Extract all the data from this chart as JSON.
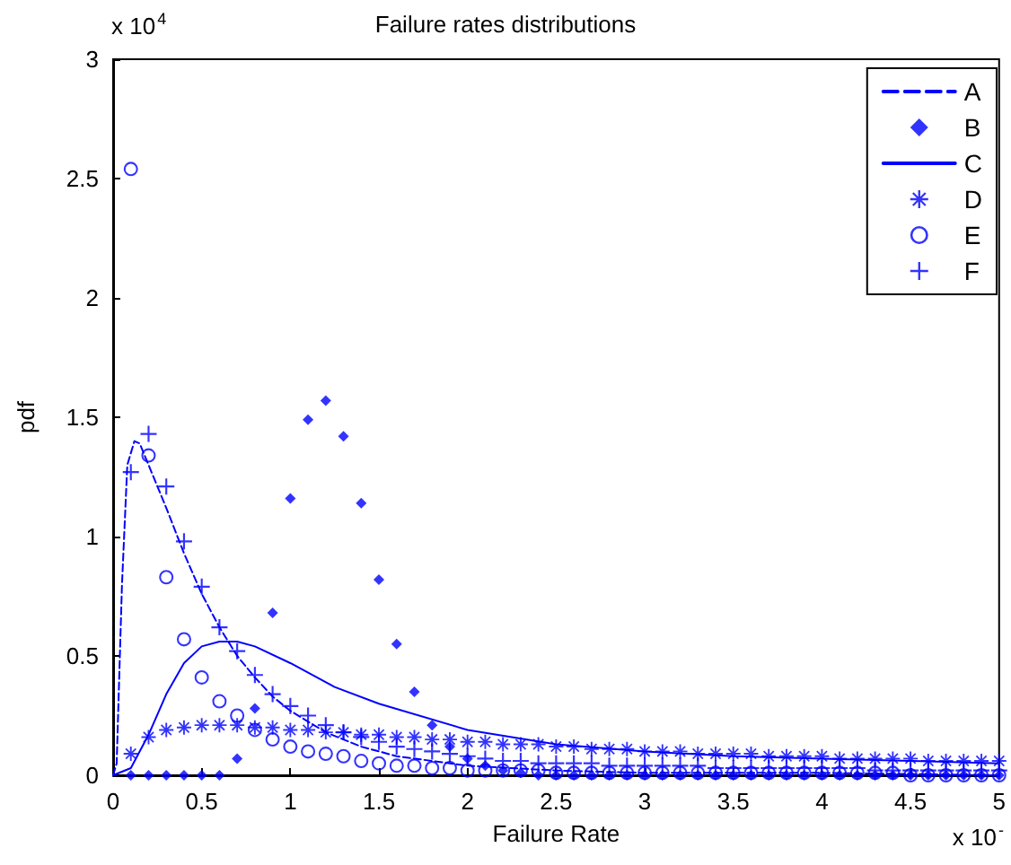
{
  "chart_data": {
    "type": "line",
    "title": "Failure rates distributions",
    "xlabel": "Failure Rate",
    "ylabel": "pdf",
    "annotations": [
      "x 10$^{4}$",
      "x 10$^{-}$"
    ],
    "x": [
      0.1,
      0.2,
      0.3,
      0.4,
      0.5,
      0.6,
      0.7,
      0.8,
      0.9,
      1.0,
      1.1,
      1.2,
      1.3,
      1.4,
      1.5,
      1.6,
      1.7,
      1.8,
      1.9,
      2.0,
      2.1,
      2.2,
      2.3,
      2.4,
      2.5,
      2.6,
      2.7,
      2.8,
      2.9,
      3.0,
      3.1,
      3.2,
      3.3,
      3.4,
      3.5,
      3.6,
      3.7,
      3.8,
      3.9,
      4.0,
      4.1,
      4.2,
      4.3,
      4.4,
      4.5,
      4.6,
      4.7,
      4.8,
      4.9,
      5.0
    ],
    "series": [
      {
        "name": "A",
        "type": "line",
        "line_style": "dashed",
        "marker": "none",
        "color": "#0000ff",
        "x": [
          0,
          0.02,
          0.05,
          0.08,
          0.12,
          0.15,
          0.2,
          0.3,
          0.4,
          0.5,
          0.6,
          0.7,
          0.8,
          0.9,
          1.0,
          1.2,
          1.4,
          1.6,
          1.8,
          2.0,
          2.5,
          3.0,
          4.0,
          5.0
        ],
        "values": [
          0,
          0.05,
          0.8,
          1.3,
          1.4,
          1.39,
          1.3,
          1.12,
          0.93,
          0.76,
          0.62,
          0.5,
          0.41,
          0.33,
          0.27,
          0.18,
          0.12,
          0.08,
          0.06,
          0.04,
          0.02,
          0.01,
          0.01,
          0
        ]
      },
      {
        "name": "B",
        "type": "scatter",
        "marker": "diamond",
        "color": "#0000ff",
        "values": [
          0,
          0,
          0,
          0,
          0,
          0,
          0.07,
          0.28,
          0.68,
          1.16,
          1.49,
          1.57,
          1.42,
          1.14,
          0.82,
          0.55,
          0.35,
          0.21,
          0.12,
          0.07,
          0.04,
          0.02,
          0.01,
          0,
          0,
          0,
          0,
          0,
          0,
          0,
          0,
          0,
          0,
          0,
          0,
          0,
          0,
          0,
          0,
          0,
          0,
          0,
          0,
          0,
          0,
          0,
          0,
          0,
          0,
          0
        ]
      },
      {
        "name": "C",
        "type": "line",
        "line_style": "solid",
        "marker": "none",
        "color": "#0000ff",
        "x": [
          0,
          0.1,
          0.2,
          0.3,
          0.4,
          0.5,
          0.6,
          0.7,
          0.8,
          1.0,
          1.25,
          1.5,
          2.0,
          2.5,
          3.0,
          3.5,
          4.0,
          4.5,
          5.0
        ],
        "values": [
          0,
          0.03,
          0.17,
          0.34,
          0.47,
          0.54,
          0.56,
          0.56,
          0.54,
          0.47,
          0.37,
          0.3,
          0.19,
          0.13,
          0.1,
          0.08,
          0.07,
          0.06,
          0.05
        ]
      },
      {
        "name": "D",
        "type": "scatter",
        "marker": "star",
        "color": "#0000ff",
        "values": [
          0.09,
          0.16,
          0.19,
          0.2,
          0.21,
          0.21,
          0.21,
          0.2,
          0.2,
          0.19,
          0.19,
          0.18,
          0.18,
          0.17,
          0.17,
          0.16,
          0.16,
          0.15,
          0.15,
          0.14,
          0.14,
          0.13,
          0.13,
          0.13,
          0.12,
          0.12,
          0.11,
          0.11,
          0.11,
          0.1,
          0.1,
          0.1,
          0.09,
          0.09,
          0.09,
          0.09,
          0.08,
          0.08,
          0.08,
          0.08,
          0.07,
          0.07,
          0.07,
          0.07,
          0.07,
          0.06,
          0.06,
          0.06,
          0.06,
          0.06
        ]
      },
      {
        "name": "E",
        "type": "scatter",
        "marker": "circle",
        "color": "#0000ff",
        "values": [
          2.54,
          1.34,
          0.83,
          0.57,
          0.41,
          0.31,
          0.25,
          0.19,
          0.15,
          0.12,
          0.1,
          0.09,
          0.08,
          0.06,
          0.05,
          0.04,
          0.04,
          0.03,
          0.03,
          0.02,
          0.02,
          0.02,
          0.02,
          0.02,
          0.01,
          0.01,
          0.01,
          0.01,
          0.01,
          0.01,
          0.01,
          0.01,
          0.01,
          0.01,
          0.01,
          0.01,
          0.01,
          0.01,
          0.01,
          0.01,
          0.01,
          0.01,
          0.01,
          0.01,
          0,
          0,
          0,
          0,
          0,
          0
        ]
      },
      {
        "name": "F",
        "type": "scatter",
        "marker": "cross",
        "color": "#0000ff",
        "values": [
          1.27,
          1.43,
          1.21,
          0.98,
          0.79,
          0.62,
          0.52,
          0.42,
          0.34,
          0.29,
          0.25,
          0.21,
          0.18,
          0.16,
          0.14,
          0.12,
          0.11,
          0.1,
          0.09,
          0.08,
          0.07,
          0.06,
          0.06,
          0.05,
          0.05,
          0.05,
          0.05,
          0.04,
          0.04,
          0.04,
          0.04,
          0.04,
          0.04,
          0.03,
          0.03,
          0.03,
          0.03,
          0.03,
          0.03,
          0.03,
          0.03,
          0.03,
          0.02,
          0.02,
          0.02,
          0.02,
          0.02,
          0.02,
          0.02,
          0.02
        ]
      }
    ],
    "xlim": [
      0,
      5
    ],
    "xticks": [
      0,
      0.5,
      1,
      1.5,
      2,
      2.5,
      3,
      3.5,
      4,
      4.5,
      5
    ],
    "ylim": [
      0,
      3
    ],
    "yticks": [
      0,
      0.5,
      1,
      1.5,
      2,
      2.5,
      3
    ],
    "grid": false,
    "legend": "top right"
  }
}
